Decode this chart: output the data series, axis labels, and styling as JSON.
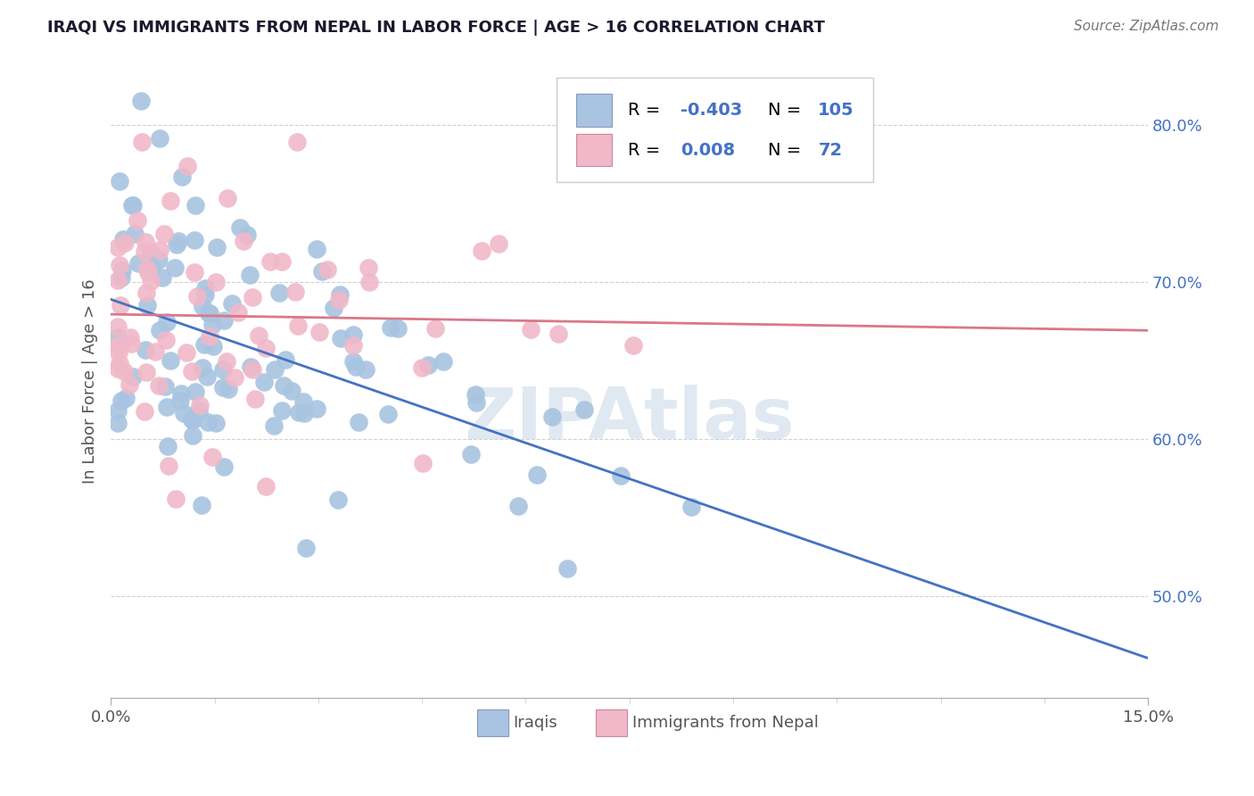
{
  "title": "IRAQI VS IMMIGRANTS FROM NEPAL IN LABOR FORCE | AGE > 16 CORRELATION CHART",
  "source": "Source: ZipAtlas.com",
  "ylabel_label": "In Labor Force | Age > 16",
  "xmin": 0.0,
  "xmax": 0.15,
  "ymin": 0.435,
  "ymax": 0.838,
  "yticks": [
    0.5,
    0.6,
    0.7,
    0.8
  ],
  "ytick_labels": [
    "50.0%",
    "60.0%",
    "70.0%",
    "80.0%"
  ],
  "legend_R_blue": "-0.403",
  "legend_N_blue": "105",
  "legend_R_pink": "0.008",
  "legend_N_pink": "72",
  "blue_color": "#a8c4e0",
  "pink_color": "#f0b8c8",
  "blue_line_color": "#4472c4",
  "pink_line_color": "#d9788a",
  "title_color": "#1a1a2e",
  "source_color": "#777777",
  "label_color": "#555555",
  "ytick_color": "#4472c4",
  "xtick_color": "#555555",
  "grid_color": "#cccccc",
  "watermark_color": "#c8d8e8",
  "bg_color": "#ffffff"
}
